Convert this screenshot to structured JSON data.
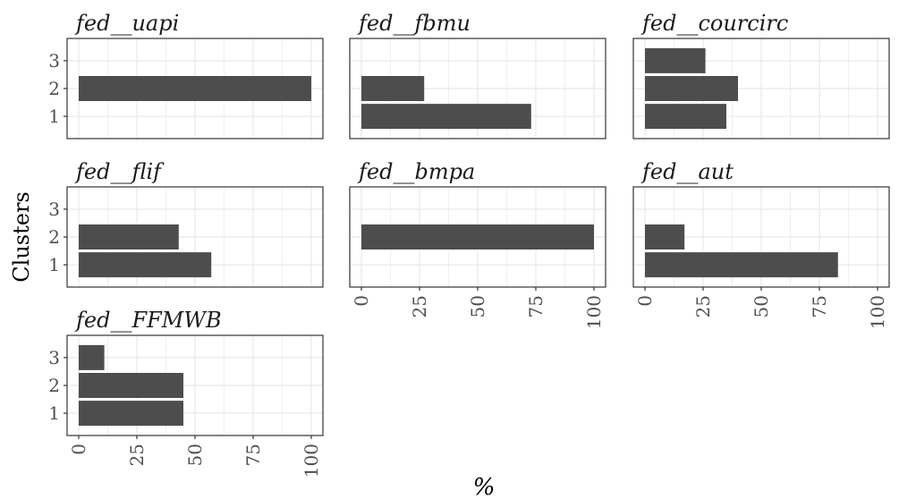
{
  "chart_data": {
    "type": "bar",
    "orientation": "horizontal",
    "xlabel": "%",
    "ylabel": "Clusters",
    "xlim": [
      0,
      100
    ],
    "x_ticks": [
      "0",
      "25",
      "50",
      "75",
      "100"
    ],
    "y_categories": [
      "1",
      "2",
      "3"
    ],
    "grid": true,
    "bar_color": "#4d4d4d",
    "panel_border_color": "#333333",
    "grid_color": "#ebebeb",
    "panels": [
      {
        "title": "fed__uapi",
        "values": [
          null,
          100,
          null
        ]
      },
      {
        "title": "fed__fbmu",
        "values": [
          73,
          27,
          null
        ]
      },
      {
        "title": "fed__courcirc",
        "values": [
          35,
          40,
          26
        ]
      },
      {
        "title": "fed__flif",
        "values": [
          57,
          43,
          null
        ]
      },
      {
        "title": "fed__bmpa",
        "values": [
          null,
          100,
          null
        ]
      },
      {
        "title": "fed__aut",
        "values": [
          83,
          17,
          null
        ]
      },
      {
        "title": "fed__FFMWB",
        "values": [
          45,
          45,
          11
        ]
      }
    ]
  }
}
